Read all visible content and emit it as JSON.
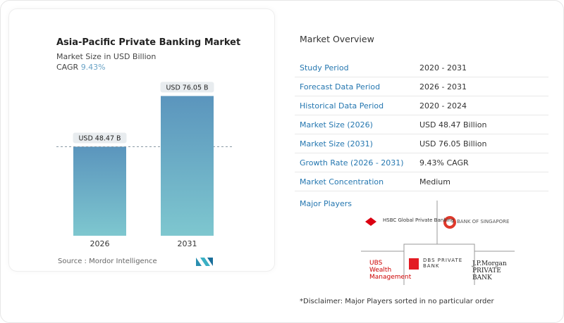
{
  "chart_data": {
    "type": "bar",
    "title": "Asia-Pacific Private Banking Market",
    "subtitle": "Market Size in USD Billion",
    "cagr_label": "CAGR",
    "cagr_value": "9.43%",
    "categories": [
      "2026",
      "2031"
    ],
    "values": [
      48.47,
      76.05
    ],
    "data_labels": [
      "USD 48.47 B",
      "USD 76.05 B"
    ],
    "ylim": [
      0,
      90
    ],
    "colors": {
      "bar_top": "#5b95bd",
      "bar_bottom": "#7ec7cf"
    },
    "source": "Source :  Mordor Intelligence"
  },
  "overview": {
    "title": "Market Overview",
    "rows": [
      {
        "label": "Study Period",
        "value": "2020 - 2031"
      },
      {
        "label": "Forecast Data Period",
        "value": "2026 - 2031"
      },
      {
        "label": "Historical Data Period",
        "value": "2020 - 2024"
      },
      {
        "label": "Market Size (2026)",
        "value": "USD 48.47 Billion"
      },
      {
        "label": "Market Size (2031)",
        "value": "USD 76.05 Billion"
      },
      {
        "label": "Growth Rate (2026 - 2031)",
        "value": "9.43% CAGR"
      },
      {
        "label": "Market Concentration",
        "value": "Medium"
      }
    ]
  },
  "players": {
    "title": "Major Players",
    "list": [
      "HSBC Global Private Banking",
      "BANK OF SINGAPORE",
      "UBS Wealth Management",
      "DBS PRIVATE BANK",
      "J.P.Morgan PRIVATE BANK"
    ]
  },
  "disclaimer": "*Disclaimer: Major Players sorted in no particular order"
}
